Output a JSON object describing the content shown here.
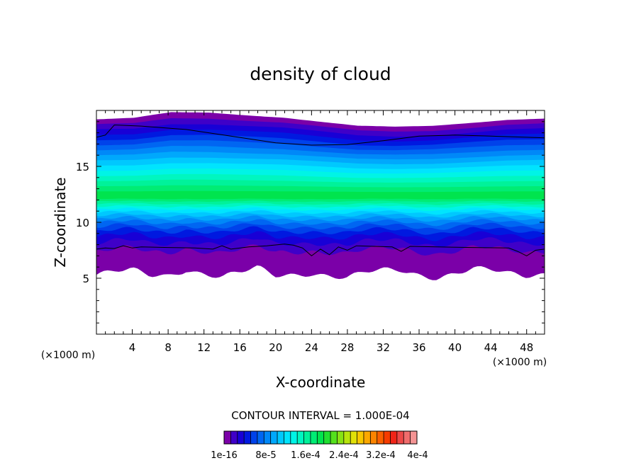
{
  "chart_data": {
    "type": "heatmap",
    "title": "density of cloud",
    "xlabel": "X-coordinate",
    "ylabel": "Z-coordinate",
    "x_unit": "(×1000 m)",
    "z_unit": "(×1000 m)",
    "xlim": [
      0,
      50
    ],
    "ylim": [
      0,
      20
    ],
    "x_ticks": [
      4,
      8,
      12,
      16,
      20,
      24,
      28,
      32,
      36,
      40,
      44,
      48
    ],
    "y_ticks": [
      5,
      10,
      15
    ],
    "contour_interval_text": "CONTOUR INTERVAL = 1.000E-04",
    "colorbar": {
      "labels": [
        "1e-16",
        "8e-5",
        "1.6e-4",
        "2.4e-4",
        "3.2e-4",
        "4e-4"
      ],
      "colors": [
        "#7b00a8",
        "#3f00c8",
        "#1800d6",
        "#0019e0",
        "#0042ea",
        "#0066f2",
        "#0088f8",
        "#00a8fc",
        "#00c8fe",
        "#00e4fe",
        "#00f4e6",
        "#00f6c0",
        "#00f29a",
        "#00ec74",
        "#00e44e",
        "#20e030",
        "#54e01c",
        "#88e214",
        "#b8e40c",
        "#e0e008",
        "#f8c800",
        "#fca800",
        "#fc8400",
        "#fa6000",
        "#f63c00",
        "#f02418",
        "#ec4848",
        "#f06c6c",
        "#f49494"
      ]
    },
    "color_levels_note": "",
    "contours": [
      {
        "level": "upper",
        "points": [
          [
            0,
            17.6
          ],
          [
            1,
            17.8
          ],
          [
            2,
            18.7
          ],
          [
            5,
            18.6
          ],
          [
            10,
            18.3
          ],
          [
            15,
            17.7
          ],
          [
            20,
            17.1
          ],
          [
            24,
            16.9
          ],
          [
            28,
            16.95
          ],
          [
            32,
            17.3
          ],
          [
            36,
            17.7
          ],
          [
            40,
            17.8
          ],
          [
            44,
            17.7
          ],
          [
            48,
            17.6
          ],
          [
            50,
            17.55
          ]
        ]
      },
      {
        "level": "lower",
        "points": [
          [
            0,
            7.6
          ],
          [
            1,
            7.7
          ],
          [
            2,
            7.65
          ],
          [
            3,
            7.9
          ],
          [
            4,
            7.7
          ],
          [
            5,
            7.8
          ],
          [
            8,
            7.75
          ],
          [
            11,
            7.7
          ],
          [
            13,
            7.6
          ],
          [
            14,
            7.9
          ],
          [
            15,
            7.6
          ],
          [
            17,
            7.8
          ],
          [
            19,
            7.9
          ],
          [
            21,
            8.05
          ],
          [
            22,
            7.95
          ],
          [
            23,
            7.7
          ],
          [
            24,
            7.0
          ],
          [
            25,
            7.6
          ],
          [
            26,
            7.1
          ],
          [
            27,
            7.8
          ],
          [
            28,
            7.5
          ],
          [
            29,
            7.9
          ],
          [
            31,
            7.85
          ],
          [
            33,
            7.8
          ],
          [
            34,
            7.4
          ],
          [
            35,
            7.85
          ],
          [
            38,
            7.8
          ],
          [
            42,
            7.75
          ],
          [
            46,
            7.7
          ],
          [
            47,
            7.4
          ],
          [
            48,
            7.0
          ],
          [
            49,
            7.5
          ],
          [
            50,
            7.6
          ]
        ]
      }
    ],
    "field": {
      "cloud_top_z": [
        19.2,
        19.3,
        19.8,
        19.8,
        19.6,
        19.4,
        19.0,
        18.6,
        18.5,
        18.6,
        18.9,
        19.2,
        19.3
      ],
      "cloud_base_z": [
        5.3,
        5.5,
        5.6,
        5.2,
        5.3,
        5.9,
        5.5,
        5.1,
        5.4,
        5.8,
        5.2,
        5.4,
        5.6,
        5.3,
        5.0,
        5.4,
        5.6,
        5.7,
        5.4,
        5.2,
        5.5,
        5.8,
        5.6,
        5.3,
        5.2,
        5.5
      ],
      "max_density_z": 12.3,
      "max_level_index": 14
    }
  }
}
